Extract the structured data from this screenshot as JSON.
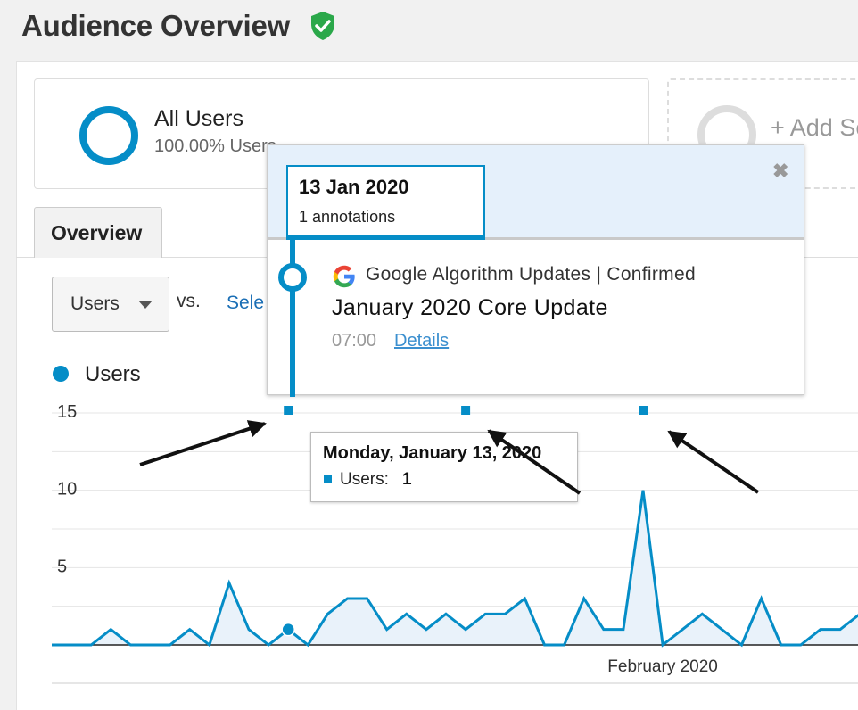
{
  "page": {
    "title": "Audience Overview"
  },
  "segments": {
    "active": {
      "name": "All Users",
      "percent": "100.00% Users"
    },
    "add_label": "+ Add Se"
  },
  "tabs": {
    "overview": "Overview"
  },
  "controls": {
    "metric": "Users",
    "vs": "vs.",
    "select_link": "Sele"
  },
  "legend": {
    "series": "Users"
  },
  "annotation": {
    "date": "13 Jan 2020",
    "count": "1 annotations",
    "source": "Google Algorithm Updates | Confirmed",
    "title": "January 2020 Core Update",
    "time": "07:00",
    "details": "Details"
  },
  "tooltip": {
    "date": "Monday, January 13, 2020",
    "label": "Users:",
    "value": "1"
  },
  "colors": {
    "accent": "#058dc7",
    "link": "#1a6eb5",
    "shield": "#2ba84a"
  },
  "chart_data": {
    "type": "area",
    "series": [
      {
        "name": "Users",
        "values": [
          0,
          0,
          0,
          1,
          0,
          0,
          0,
          1,
          0,
          4,
          1,
          0,
          1,
          0,
          2,
          3,
          3,
          1,
          2,
          1,
          2,
          1,
          2,
          2,
          3,
          0,
          0,
          3,
          1,
          1,
          10,
          0,
          1,
          2,
          1,
          0,
          3,
          0,
          0,
          1,
          1,
          2
        ]
      }
    ],
    "y_ticks": [
      15,
      10,
      5
    ],
    "ylim": [
      0,
      15
    ],
    "x_tick_labels": [
      {
        "label": "February 2020",
        "index": 31
      }
    ],
    "annotation_marker_indices": [
      12,
      21,
      30
    ],
    "highlight_index": 12,
    "grid": true
  }
}
